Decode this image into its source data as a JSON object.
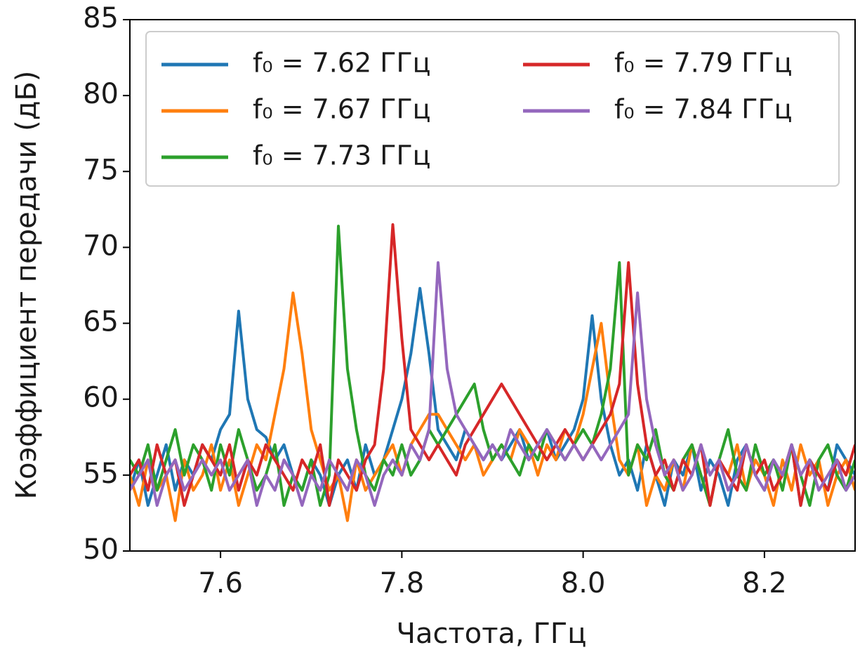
{
  "chart_data": {
    "type": "line",
    "xlabel": "Частота, ГГц",
    "ylabel": "Коэффициент передачи (дБ)",
    "xlim": [
      7.5,
      8.3
    ],
    "xticks": [
      7.6,
      7.8,
      {
        "value": 8,
        "label": "8.0"
      },
      8.2
    ],
    "ylim": [
      50,
      85
    ],
    "yticks": [
      50,
      55,
      60,
      65,
      70,
      75,
      80,
      85
    ],
    "legend": "upper right",
    "x": [
      7.5,
      7.51,
      7.52,
      7.53,
      7.54,
      7.55,
      7.56,
      7.57,
      7.58,
      7.59,
      7.6,
      7.61,
      7.62,
      7.63,
      7.64,
      7.65,
      7.66,
      7.67,
      7.68,
      7.69,
      7.7,
      7.71,
      7.72,
      7.73,
      7.74,
      7.75,
      7.76,
      7.77,
      7.78,
      7.79,
      7.8,
      7.81,
      7.82,
      7.83,
      7.84,
      7.85,
      7.86,
      7.87,
      7.88,
      7.89,
      7.9,
      7.91,
      7.92,
      7.93,
      7.94,
      7.95,
      7.96,
      7.97,
      7.98,
      7.99,
      8,
      8.01,
      8.02,
      8.03,
      8.04,
      8.05,
      8.06,
      8.07,
      8.08,
      8.09,
      8.1,
      8.11,
      8.12,
      8.13,
      8.14,
      8.15,
      8.16,
      8.17,
      8.18,
      8.19,
      8.2,
      8.21,
      8.22,
      8.23,
      8.24,
      8.25,
      8.26,
      8.27,
      8.28,
      8.29,
      8.3
    ],
    "series": [
      {
        "name": "f₀ = 7.62 ГГц",
        "color": "#1f77b4",
        "values": [
          54,
          56,
          53,
          55,
          57,
          54,
          56,
          55,
          57,
          56,
          58,
          59,
          65.8,
          60,
          58,
          57.5,
          56,
          57,
          55,
          54,
          56,
          55,
          53,
          55,
          56,
          54,
          57,
          55,
          56,
          58,
          60,
          63,
          67.3,
          63,
          58,
          57,
          56,
          58,
          57,
          56,
          57,
          56,
          57,
          58,
          56,
          57,
          58,
          56,
          57,
          58,
          60,
          65.5,
          60,
          57,
          55,
          56,
          54,
          57,
          55,
          53,
          56,
          55,
          57,
          54,
          56,
          55,
          53,
          56,
          57,
          55,
          54,
          56,
          55,
          57,
          53,
          56,
          55,
          54,
          57,
          56,
          55
        ]
      },
      {
        "name": "f₀ = 7.67 ГГц",
        "color": "#ff7f0e",
        "values": [
          55,
          53,
          56,
          54,
          55,
          52,
          56,
          54,
          55,
          57,
          54,
          56,
          53,
          55,
          57,
          56,
          59,
          62,
          67,
          63,
          58,
          56,
          54,
          55,
          52,
          56,
          54,
          55,
          56,
          57,
          55,
          57,
          58,
          59,
          59,
          58,
          57,
          56,
          57,
          55,
          56,
          57,
          56,
          58,
          57,
          55,
          57,
          56,
          58,
          57,
          59,
          62,
          65,
          60,
          56,
          55,
          57,
          53,
          55,
          54,
          56,
          54,
          57,
          55,
          53,
          56,
          55,
          57,
          54,
          56,
          55,
          53,
          56,
          54,
          57,
          55,
          56,
          53,
          55,
          56,
          54
        ]
      },
      {
        "name": "f₀ = 7.73 ГГц",
        "color": "#2ca02c",
        "values": [
          56,
          55,
          57,
          54,
          56,
          58,
          55,
          57,
          56,
          54,
          57,
          55,
          58,
          56,
          54,
          55,
          57,
          53,
          55,
          54,
          56,
          53,
          55,
          71.4,
          62,
          58,
          55,
          54,
          56,
          55,
          57,
          55,
          56,
          58,
          57,
          58,
          59,
          60,
          61,
          58,
          56,
          57,
          56,
          55,
          57,
          56,
          58,
          57,
          56,
          57,
          58,
          57,
          59,
          62,
          69,
          55,
          57,
          56,
          58,
          55,
          54,
          56,
          57,
          55,
          53,
          56,
          58,
          55,
          54,
          57,
          55,
          56,
          54,
          57,
          55,
          53,
          56,
          57,
          55,
          54,
          56
        ]
      },
      {
        "name": "f₀ = 7.79 ГГц",
        "color": "#d62728",
        "values": [
          55,
          56,
          54,
          57,
          55,
          56,
          53,
          55,
          57,
          56,
          55,
          57,
          54,
          56,
          55,
          57,
          56,
          55,
          54,
          56,
          55,
          57,
          53,
          56,
          55,
          54,
          56,
          57,
          62,
          71.5,
          64,
          58,
          57,
          56,
          57,
          56,
          55,
          57,
          58,
          59,
          60,
          61,
          60,
          59,
          58,
          57,
          56,
          57,
          58,
          57,
          56,
          57,
          58,
          59,
          61,
          69,
          61,
          57,
          55,
          56,
          54,
          56,
          55,
          57,
          53,
          56,
          55,
          54,
          57,
          55,
          56,
          54,
          55,
          57,
          53,
          56,
          55,
          54,
          56,
          55,
          57
        ]
      },
      {
        "name": "f₀ = 7.84 ГГц",
        "color": "#9467bd",
        "values": [
          54,
          55,
          56,
          53,
          55,
          56,
          54,
          55,
          56,
          55,
          56,
          54,
          55,
          56,
          53,
          55,
          54,
          56,
          55,
          53,
          55,
          54,
          56,
          55,
          54,
          56,
          55,
          53,
          55,
          56,
          55,
          57,
          56,
          58,
          69,
          62,
          59,
          58,
          57,
          56,
          57,
          56,
          58,
          57,
          56,
          57,
          58,
          57,
          56,
          57,
          56,
          57,
          56,
          57,
          58,
          59,
          67,
          60,
          57,
          55,
          56,
          54,
          55,
          57,
          55,
          56,
          54,
          55,
          57,
          55,
          54,
          56,
          55,
          57,
          55,
          56,
          54,
          55,
          56,
          54,
          55
        ]
      }
    ]
  }
}
